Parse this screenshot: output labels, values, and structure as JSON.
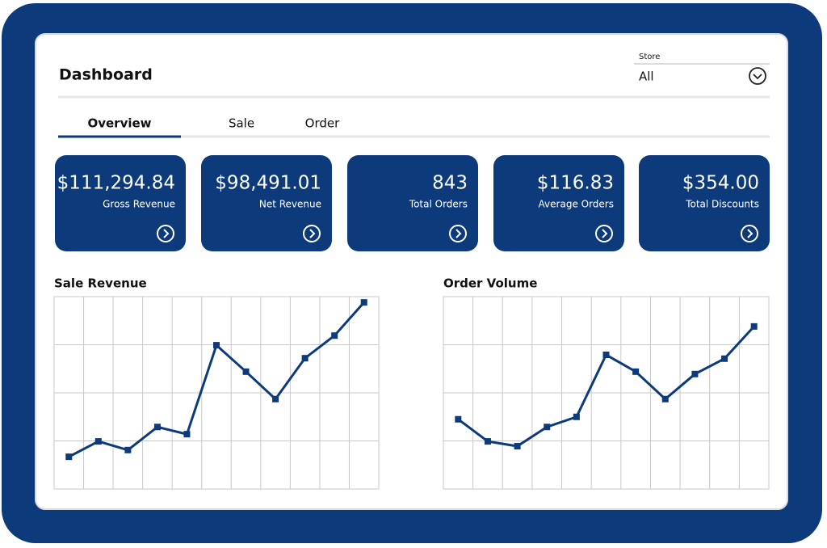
{
  "header": {
    "title": "Dashboard"
  },
  "store": {
    "label": "Store",
    "value": "All"
  },
  "tabs": [
    "Overview",
    "Sale",
    "Order"
  ],
  "cards": [
    {
      "value": "$111,294.84",
      "label": "Gross Revenue"
    },
    {
      "value": "$98,491.01",
      "label": "Net Revenue"
    },
    {
      "value": "843",
      "label": "Total Orders"
    },
    {
      "value": "$116.83",
      "label": "Average Orders"
    },
    {
      "value": "$354.00",
      "label": "Total Discounts"
    }
  ],
  "charts": [
    {
      "type": "line",
      "title": "Sale Revenue",
      "color": "#0d3a7a",
      "categories": [
        null,
        null,
        null,
        null,
        null,
        null,
        null,
        null,
        null,
        null,
        null
      ],
      "values": [
        0.67,
        0.99,
        0.81,
        1.29,
        1.14,
        2.99,
        2.44,
        1.87,
        2.72,
        3.19,
        3.88
      ],
      "ylim": [
        0,
        4
      ],
      "yticks": [
        0,
        1,
        2,
        3,
        4
      ],
      "grid": true
    },
    {
      "type": "line",
      "title": "Order Volume",
      "color": "#0d3a7a",
      "categories": [
        null,
        null,
        null,
        null,
        null,
        null,
        null,
        null,
        null,
        null,
        null
      ],
      "values": [
        1.45,
        0.99,
        0.89,
        1.29,
        1.5,
        2.79,
        2.44,
        1.87,
        2.39,
        2.71,
        3.38
      ],
      "ylim": [
        0,
        4
      ],
      "yticks": [
        0,
        1,
        2,
        3,
        4
      ],
      "grid": true
    }
  ]
}
